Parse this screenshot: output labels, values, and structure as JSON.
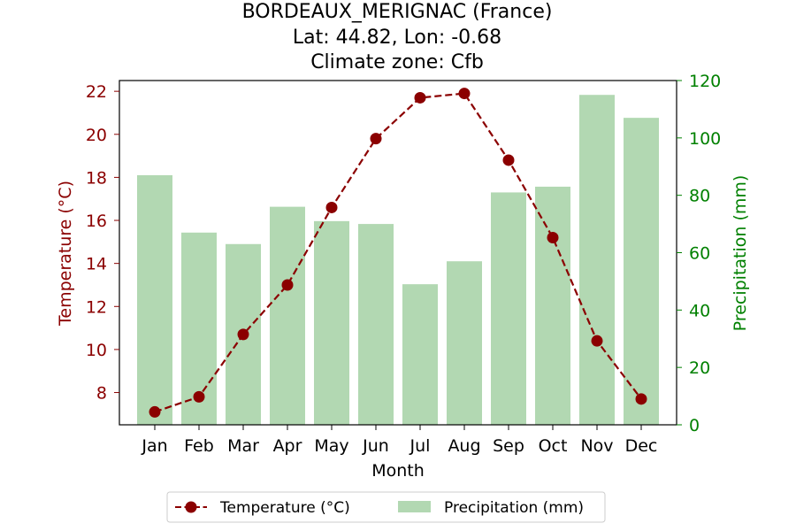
{
  "chart_data": {
    "type": "bar+line",
    "title": [
      "BORDEAUX_MERIGNAC (France)",
      "Lat: 44.82, Lon: -0.68",
      "Climate zone: Cfb"
    ],
    "xlabel": "Month",
    "ylabel_left": "Temperature (°C)",
    "ylabel_right": "Precipitation (mm)",
    "categories": [
      "Jan",
      "Feb",
      "Mar",
      "Apr",
      "May",
      "Jun",
      "Jul",
      "Aug",
      "Sep",
      "Oct",
      "Nov",
      "Dec"
    ],
    "temperature": {
      "name": "Temperature (°C)",
      "values": [
        7.1,
        7.8,
        10.7,
        13.0,
        16.6,
        19.8,
        21.7,
        21.9,
        18.8,
        15.2,
        10.4,
        7.7
      ],
      "color": "#8b0000",
      "ylim": [
        6.5,
        22.5
      ],
      "ticks": [
        8,
        10,
        12,
        14,
        16,
        18,
        20,
        22
      ]
    },
    "precipitation": {
      "name": "Precipitation (mm)",
      "values": [
        87,
        67,
        63,
        76,
        71,
        70,
        49,
        57,
        81,
        83,
        115,
        107
      ],
      "color": "#b2d8b2",
      "ylim": [
        0,
        120
      ],
      "ticks": [
        0,
        20,
        40,
        60,
        80,
        100,
        120
      ]
    },
    "left_axis_color": "#8b0000",
    "right_axis_color": "#008000",
    "legend_position": "bottom-center"
  }
}
